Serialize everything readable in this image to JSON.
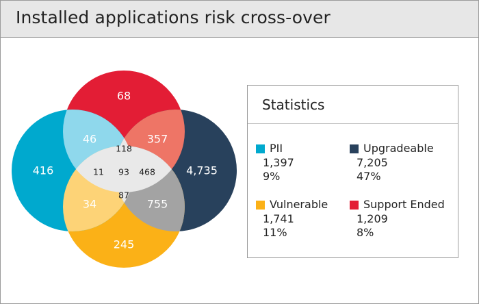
{
  "header": {
    "title": "Installed applications risk cross-over"
  },
  "stats": {
    "title": "Statistics",
    "items": [
      {
        "name": "PII",
        "count": "1,397",
        "percent": "9%",
        "color": "#00a9ce"
      },
      {
        "name": "Upgradeable",
        "count": "7,205",
        "percent": "47%",
        "color": "#28415c"
      },
      {
        "name": "Vulnerable",
        "count": "1,741",
        "percent": "11%",
        "color": "#fbb117"
      },
      {
        "name": "Support Ended",
        "count": "1,209",
        "percent": "8%",
        "color": "#e31d35"
      }
    ]
  },
  "chart_data": {
    "type": "venn",
    "title": "Installed applications risk cross-over",
    "sets": [
      {
        "name": "PII",
        "color": "#00a9ce",
        "total": 1397,
        "percent": 9
      },
      {
        "name": "Upgradeable",
        "color": "#28415c",
        "total": 7205,
        "percent": 47
      },
      {
        "name": "Vulnerable",
        "color": "#fbb117",
        "total": 1741,
        "percent": 11
      },
      {
        "name": "Support Ended",
        "color": "#e31d35",
        "total": 1209,
        "percent": 8
      }
    ],
    "regions": [
      {
        "sets": [
          "Support Ended"
        ],
        "value": 68
      },
      {
        "sets": [
          "PII"
        ],
        "value": 416
      },
      {
        "sets": [
          "Upgradeable"
        ],
        "value": 4735
      },
      {
        "sets": [
          "Vulnerable"
        ],
        "value": 245
      },
      {
        "sets": [
          "PII",
          "Support Ended"
        ],
        "value": 46
      },
      {
        "sets": [
          "Support Ended",
          "Upgradeable"
        ],
        "value": 357
      },
      {
        "sets": [
          "PII",
          "Vulnerable"
        ],
        "value": 34
      },
      {
        "sets": [
          "Vulnerable",
          "Upgradeable"
        ],
        "value": 755
      },
      {
        "sets": [
          "PII",
          "Support Ended",
          "Upgradeable"
        ],
        "value": 118
      },
      {
        "sets": [
          "PII",
          "Support Ended",
          "Vulnerable"
        ],
        "value": 11
      },
      {
        "sets": [
          "Support Ended",
          "Vulnerable",
          "Upgradeable"
        ],
        "value": 468
      },
      {
        "sets": [
          "PII",
          "Vulnerable",
          "Upgradeable"
        ],
        "value": 87
      },
      {
        "sets": [
          "PII",
          "Support Ended",
          "Vulnerable",
          "Upgradeable"
        ],
        "value": 93
      }
    ],
    "labels": {
      "support_only": "68",
      "pii_only": "416",
      "upgradeable_only": "4,735",
      "vulnerable_only": "245",
      "pii_support": "46",
      "support_upgradeable": "357",
      "pii_vulnerable": "34",
      "vulnerable_upgradeable": "755",
      "pii_support_upgradeable": "118",
      "pii_support_vulnerable": "11",
      "support_vulnerable_upgradeable": "468",
      "pii_vulnerable_upgradeable": "87",
      "all_four": "93"
    }
  }
}
